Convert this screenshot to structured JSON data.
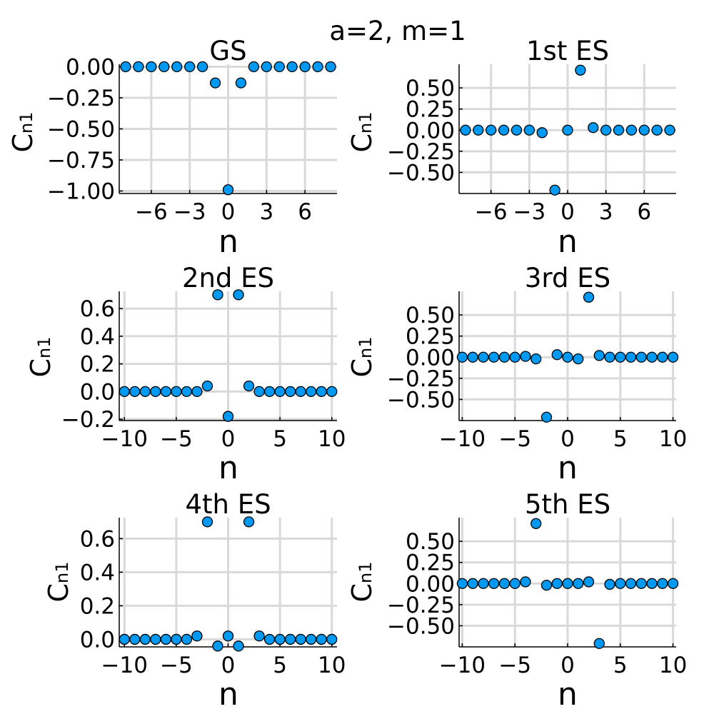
{
  "suptitle": "a=2, m=1",
  "style": {
    "marker_color": "#0099f2",
    "marker_edge": "#000000",
    "grid_color": "#d9d9d9"
  },
  "chart_data": [
    {
      "type": "scatter",
      "title": "GS",
      "xlabel": "n",
      "ylabel": "C",
      "ylabel_sub": "n1",
      "xlim": [
        -8.5,
        8.5
      ],
      "ylim": [
        -1.02,
        0.02
      ],
      "xticks": [
        -6,
        -3,
        0,
        3,
        6
      ],
      "xtick_labels": [
        "−6",
        "−3",
        "0",
        "3",
        "6"
      ],
      "yticks": [
        0,
        -0.25,
        -0.5,
        -0.75,
        -1.0
      ],
      "ytick_labels": [
        "0.00",
        "−0.25",
        "−0.50",
        "−0.75",
        "−1.00"
      ],
      "grid": true,
      "x": [
        -8,
        -7,
        -6,
        -5,
        -4,
        -3,
        -2,
        -1,
        0,
        1,
        2,
        3,
        4,
        5,
        6,
        7,
        8
      ],
      "y": [
        0,
        0,
        0,
        0,
        0,
        0,
        0,
        -0.13,
        -0.99,
        -0.13,
        0,
        0,
        0,
        0,
        0,
        0,
        0
      ]
    },
    {
      "type": "scatter",
      "title": "1st ES",
      "xlabel": "n",
      "ylabel": "C",
      "ylabel_sub": "n1",
      "xlim": [
        -8.5,
        8.5
      ],
      "ylim": [
        -0.75,
        0.78
      ],
      "xticks": [
        -6,
        -3,
        0,
        3,
        6
      ],
      "xtick_labels": [
        "−6",
        "−3",
        "0",
        "3",
        "6"
      ],
      "yticks": [
        0.5,
        0.25,
        0,
        -0.25,
        -0.5
      ],
      "ytick_labels": [
        "0.50",
        "0.25",
        "0.00",
        "−0.25",
        "−0.50"
      ],
      "grid": true,
      "x": [
        -8,
        -7,
        -6,
        -5,
        -4,
        -3,
        -2,
        -1,
        0,
        1,
        2,
        3,
        4,
        5,
        6,
        7,
        8
      ],
      "y": [
        0,
        0,
        0,
        0,
        0,
        0,
        -0.03,
        -0.71,
        0,
        0.71,
        0.03,
        0,
        0,
        0,
        0,
        0,
        0
      ]
    },
    {
      "type": "scatter",
      "title": "2nd ES",
      "xlabel": "n",
      "ylabel": "C",
      "ylabel_sub": "n1",
      "xlim": [
        -10.5,
        10.5
      ],
      "ylim": [
        -0.21,
        0.725
      ],
      "xticks": [
        -10,
        -5,
        0,
        5,
        10
      ],
      "xtick_labels": [
        "−10",
        "−5",
        "0",
        "5",
        "10"
      ],
      "yticks": [
        0.6,
        0.4,
        0.2,
        0,
        -0.2
      ],
      "ytick_labels": [
        "0.6",
        "0.4",
        "0.2",
        "0.0",
        "−0.2"
      ],
      "grid": true,
      "x": [
        -10,
        -9,
        -8,
        -7,
        -6,
        -5,
        -4,
        -3,
        -2,
        -1,
        0,
        1,
        2,
        3,
        4,
        5,
        6,
        7,
        8,
        9,
        10
      ],
      "y": [
        0,
        0,
        0,
        0,
        0,
        0,
        0,
        0,
        0.04,
        0.7,
        -0.18,
        0.7,
        0.04,
        0,
        0,
        0,
        0,
        0,
        0,
        0,
        0
      ]
    },
    {
      "type": "scatter",
      "title": "3rd ES",
      "xlabel": "n",
      "ylabel": "C",
      "ylabel_sub": "n1",
      "xlim": [
        -10.3,
        10.3
      ],
      "ylim": [
        -0.75,
        0.78
      ],
      "xticks": [
        -10,
        -5,
        0,
        5,
        10
      ],
      "xtick_labels": [
        "−10",
        "−5",
        "0",
        "5",
        "10"
      ],
      "yticks": [
        0.5,
        0.25,
        0,
        -0.25,
        -0.5
      ],
      "ytick_labels": [
        "0.50",
        "0.25",
        "0.00",
        "−0.25",
        "−0.50"
      ],
      "grid": true,
      "x": [
        -10,
        -9,
        -8,
        -7,
        -6,
        -5,
        -4,
        -3,
        -2,
        -1,
        0,
        1,
        2,
        3,
        4,
        5,
        6,
        7,
        8,
        9,
        10
      ],
      "y": [
        0,
        0,
        0,
        0,
        0,
        0,
        0.01,
        -0.02,
        -0.71,
        0.03,
        0,
        -0.02,
        0.71,
        0.02,
        0,
        0,
        0,
        0,
        0,
        0,
        0
      ]
    },
    {
      "type": "scatter",
      "title": "4th ES",
      "xlabel": "n",
      "ylabel": "C",
      "ylabel_sub": "n1",
      "xlim": [
        -10.5,
        10.5
      ],
      "ylim": [
        -0.045,
        0.725
      ],
      "xticks": [
        -10,
        -5,
        0,
        5,
        10
      ],
      "xtick_labels": [
        "−10",
        "−5",
        "0",
        "5",
        "10"
      ],
      "yticks": [
        0.6,
        0.4,
        0.2,
        0
      ],
      "ytick_labels": [
        "0.6",
        "0.4",
        "0.2",
        "0.0"
      ],
      "grid": true,
      "x": [
        -10,
        -9,
        -8,
        -7,
        -6,
        -5,
        -4,
        -3,
        -2,
        -1,
        0,
        1,
        2,
        3,
        4,
        5,
        6,
        7,
        8,
        9,
        10
      ],
      "y": [
        0,
        0,
        0,
        0,
        0,
        0,
        0,
        0.02,
        0.7,
        -0.04,
        0.02,
        -0.04,
        0.7,
        0.02,
        0,
        0,
        0,
        0,
        0,
        0,
        0
      ]
    },
    {
      "type": "scatter",
      "title": "5th ES",
      "xlabel": "n",
      "ylabel": "C",
      "ylabel_sub": "n1",
      "xlim": [
        -10.3,
        10.3
      ],
      "ylim": [
        -0.75,
        0.78
      ],
      "xticks": [
        -10,
        -5,
        0,
        5,
        10
      ],
      "xtick_labels": [
        "−10",
        "−5",
        "0",
        "5",
        "10"
      ],
      "yticks": [
        0.5,
        0.25,
        0,
        -0.25,
        -0.5
      ],
      "ytick_labels": [
        "0.50",
        "0.25",
        "0.00",
        "−0.25",
        "−0.50"
      ],
      "grid": true,
      "x": [
        -10,
        -9,
        -8,
        -7,
        -6,
        -5,
        -4,
        -3,
        -2,
        -1,
        0,
        1,
        2,
        3,
        4,
        5,
        6,
        7,
        8,
        9,
        10
      ],
      "y": [
        0,
        0,
        0,
        0,
        0,
        0,
        0.02,
        0.71,
        -0.02,
        0,
        0,
        0,
        0.02,
        -0.71,
        -0.01,
        0,
        0,
        0,
        0,
        0,
        0
      ]
    }
  ]
}
